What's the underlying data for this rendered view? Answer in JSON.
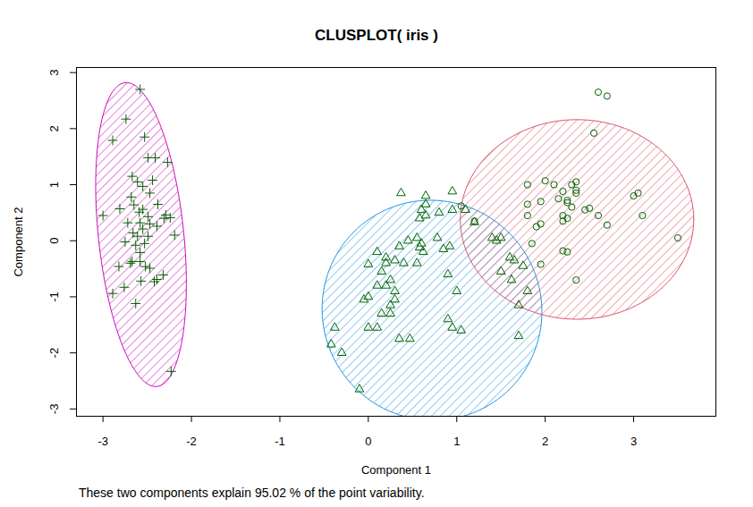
{
  "chart_data": {
    "type": "scatter",
    "title": "CLUSPLOT( iris )",
    "x_label": "Component 1",
    "y_label": "Component 2",
    "caption": "These two components explain 95.02 % of the point variability.",
    "xlim": [
      -3.3,
      3.93
    ],
    "ylim": [
      -3.13,
      3.09
    ],
    "xticks": [
      -3,
      -2,
      -1,
      0,
      1,
      2,
      3
    ],
    "yticks": [
      -3,
      -2,
      -1,
      0,
      1,
      2,
      3
    ],
    "grid": false,
    "series": [
      {
        "marker": "plus",
        "color": "#006400",
        "x": [
          -2.58,
          -2.74,
          -2.89,
          -2.53,
          -2.49,
          -2.41,
          -2.27,
          -2.67,
          -2.61,
          -2.44,
          -2.55,
          -2.47,
          -2.68,
          -3.0,
          -2.81,
          -2.65,
          -2.38,
          -2.59,
          -2.55,
          -2.29,
          -2.24,
          -2.49,
          -2.31,
          -2.72,
          -2.58,
          -2.47,
          -2.39,
          -2.66,
          -2.55,
          -2.61,
          -2.49,
          -2.53,
          -2.19,
          -2.75,
          -2.63,
          -2.58,
          -2.67,
          -2.69,
          -2.58,
          -2.82,
          -2.52,
          -2.47,
          -2.32,
          -2.39,
          -2.42,
          -2.57,
          -2.76,
          -2.89,
          -2.63,
          -2.23
        ],
        "y": [
          2.7,
          2.17,
          1.79,
          1.85,
          1.48,
          1.48,
          1.4,
          1.15,
          1.05,
          1.08,
          0.97,
          0.85,
          0.78,
          0.45,
          0.57,
          0.64,
          0.65,
          0.51,
          0.56,
          0.46,
          0.41,
          0.43,
          0.4,
          0.32,
          0.32,
          0.3,
          0.26,
          0.14,
          0.21,
          0.08,
          0.08,
          -0.05,
          0.1,
          -0.02,
          -0.08,
          -0.21,
          -0.37,
          -0.4,
          -0.37,
          -0.46,
          -0.46,
          -0.49,
          -0.61,
          -0.69,
          -0.73,
          -0.72,
          -0.83,
          -0.94,
          -1.12,
          -2.33
        ],
        "ellipse": {
          "center": [
            -2.57,
            0.11
          ],
          "axis1": [
            -0.18,
            2.71
          ],
          "axis2": [
            0.48,
            0.08
          ],
          "color": "#CD0BBC"
        }
      },
      {
        "marker": "triangle",
        "color": "#006400",
        "x": [
          0.37,
          0.65,
          0.95,
          0.65,
          0.6,
          0.8,
          0.95,
          0.65,
          0.58,
          1.1,
          1.2,
          0.78,
          0.55,
          0.45,
          0.6,
          0.35,
          0.58,
          0.62,
          0.85,
          0.92,
          0.1,
          0.2,
          0.3,
          0.4,
          0.55,
          0.2,
          0.0,
          0.15,
          0.25,
          0.1,
          0.2,
          0.3,
          0.9,
          1.0,
          0.0,
          -0.05,
          0.3,
          0.25,
          0.25,
          0.15,
          0.1,
          0.0,
          0.9,
          0.95,
          1.05,
          0.35,
          0.47,
          -0.38,
          -0.42,
          -0.3,
          -0.1,
          1.4,
          1.45,
          1.5,
          1.5,
          1.6,
          1.65,
          1.62,
          1.75,
          1.8,
          1.7,
          1.7
        ],
        "y": [
          0.85,
          0.8,
          0.88,
          0.65,
          0.55,
          0.5,
          0.55,
          0.45,
          0.4,
          0.55,
          0.33,
          0.05,
          0.05,
          0.0,
          -0.05,
          -0.1,
          -0.12,
          -0.2,
          -0.15,
          -0.1,
          -0.2,
          -0.3,
          -0.35,
          -0.4,
          -0.4,
          -0.4,
          -0.42,
          -0.55,
          -0.7,
          -0.8,
          -0.8,
          -0.9,
          -0.6,
          -0.9,
          -1.0,
          -1.05,
          -1.05,
          -1.15,
          -1.3,
          -1.3,
          -1.55,
          -1.55,
          -1.4,
          -1.55,
          -1.6,
          -1.75,
          -1.75,
          -1.55,
          -1.85,
          -2.0,
          -2.65,
          0.05,
          0.0,
          0.05,
          -0.55,
          -0.3,
          -0.35,
          -0.7,
          -0.45,
          -0.9,
          -1.15,
          -1.7
        ],
        "ellipse": {
          "center": [
            0.72,
            -1.24
          ],
          "axis1": [
            1.24,
            0.1
          ],
          "axis2": [
            -0.08,
            1.96
          ],
          "color": "#2297E6"
        }
      },
      {
        "marker": "circle",
        "color": "#006400",
        "x": [
          2.6,
          2.7,
          2.55,
          1.05,
          1.2,
          1.8,
          2.0,
          2.1,
          2.3,
          2.35,
          2.2,
          2.35,
          2.35,
          1.95,
          1.8,
          2.15,
          2.25,
          2.3,
          2.25,
          2.5,
          2.45,
          2.6,
          2.2,
          2.25,
          2.2,
          1.95,
          1.9,
          2.7,
          3.0,
          3.05,
          3.1,
          3.5,
          1.8,
          1.85,
          2.2,
          2.25,
          1.95,
          2.35
        ],
        "y": [
          2.65,
          2.58,
          1.92,
          0.62,
          0.35,
          1.0,
          1.07,
          1.0,
          1.0,
          1.05,
          0.88,
          0.9,
          0.85,
          0.7,
          0.65,
          0.75,
          0.72,
          0.6,
          0.68,
          0.58,
          0.55,
          0.45,
          0.45,
          0.4,
          0.35,
          0.3,
          0.25,
          0.28,
          0.8,
          0.85,
          0.45,
          0.05,
          0.45,
          -0.05,
          -0.18,
          -0.2,
          -0.42,
          -0.7
        ],
        "ellipse": {
          "center": [
            2.36,
            0.38
          ],
          "axis1": [
            1.32,
            0.0
          ],
          "axis2": [
            0.0,
            1.78
          ],
          "color": "#DF536B"
        }
      }
    ]
  }
}
